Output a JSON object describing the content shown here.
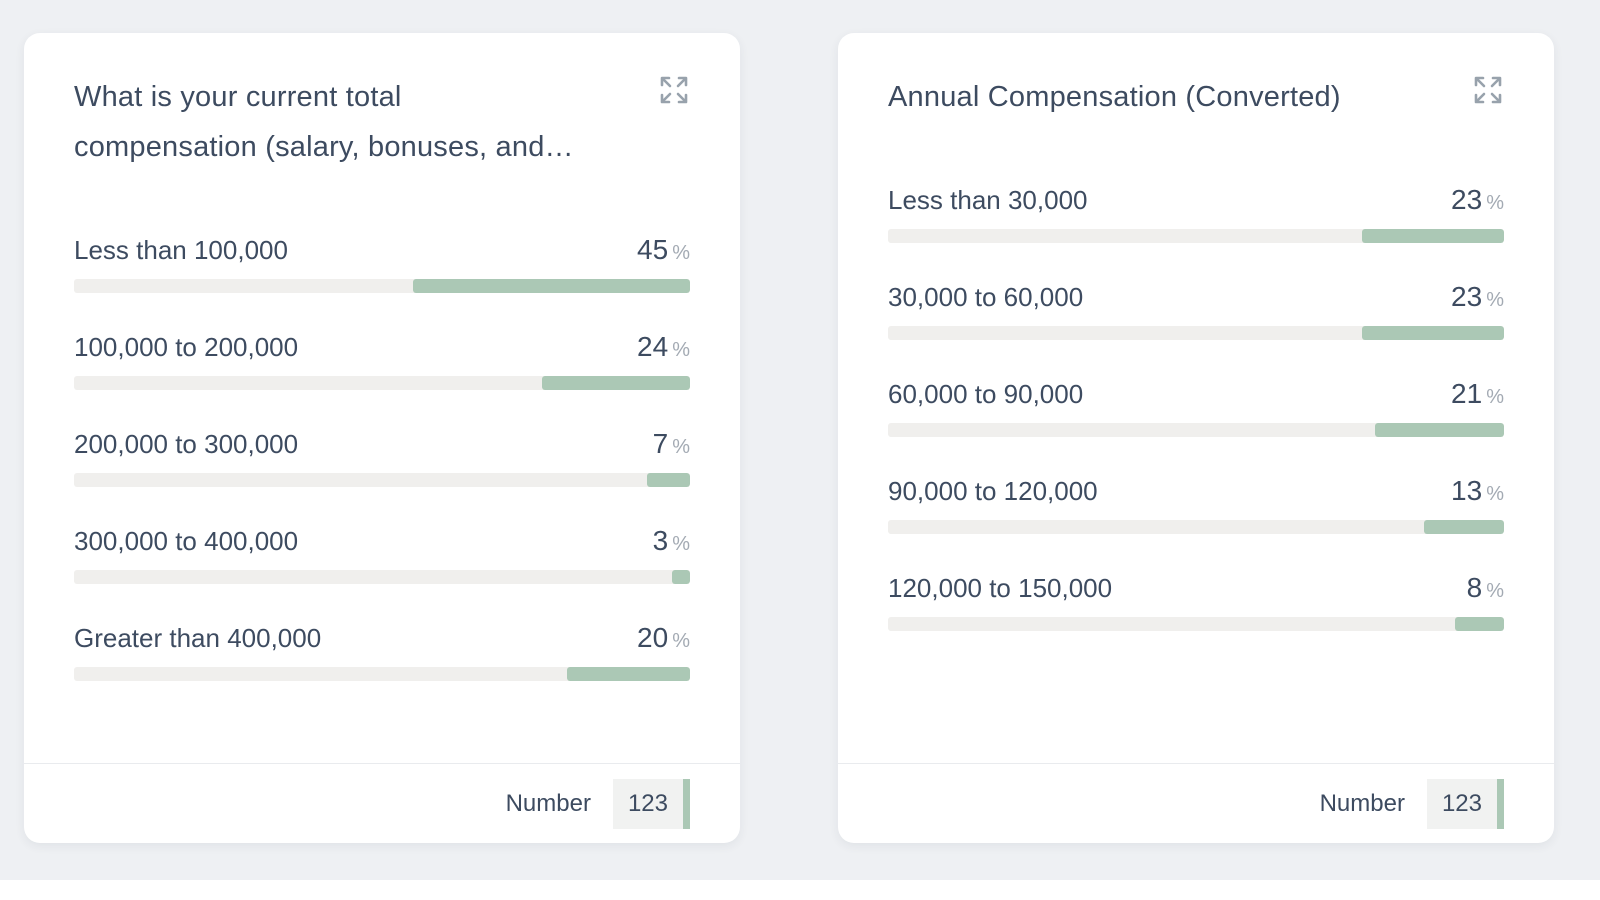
{
  "colors": {
    "page_bg": "#eef0f3",
    "card_bg": "#ffffff",
    "text_dark": "#3d4b60",
    "text_gray": "#a3aab3",
    "bar_track": "#f0efed",
    "bar_fill": "#abc8b5",
    "divider": "#e9ebee",
    "chip_bg": "#f1f2f1",
    "icon_gray": "#98a2ac"
  },
  "cards": [
    {
      "title": "What is your current total compensation (salary, bonuses, and…",
      "title_lines": [
        "What is your current total",
        "compensation (salary, bonuses, and…"
      ],
      "rows": [
        {
          "label": "Less than 100,000",
          "value": 45,
          "unit": "%"
        },
        {
          "label": "100,000 to 200,000",
          "value": 24,
          "unit": "%"
        },
        {
          "label": "200,000 to 300,000",
          "value": 7,
          "unit": "%"
        },
        {
          "label": "300,000 to 400,000",
          "value": 3,
          "unit": "%"
        },
        {
          "label": "Greater than 400,000",
          "value": 20,
          "unit": "%"
        }
      ],
      "footer": {
        "label": "Number",
        "value": "123"
      }
    },
    {
      "title": "Annual Compensation (Converted)",
      "title_lines": [
        "Annual Compensation (Converted)"
      ],
      "rows": [
        {
          "label": "Less than 30,000",
          "value": 23,
          "unit": "%"
        },
        {
          "label": "30,000 to 60,000",
          "value": 23,
          "unit": "%"
        },
        {
          "label": "60,000 to 90,000",
          "value": 21,
          "unit": "%"
        },
        {
          "label": "90,000 to 120,000",
          "value": 13,
          "unit": "%"
        },
        {
          "label": "120,000 to 150,000",
          "value": 8,
          "unit": "%"
        }
      ],
      "footer": {
        "label": "Number",
        "value": "123"
      }
    }
  ],
  "chart_data": [
    {
      "type": "bar",
      "orientation": "horizontal",
      "title": "What is your current total compensation (salary, bonuses, and…",
      "categories": [
        "Less than 100,000",
        "100,000 to 200,000",
        "200,000 to 300,000",
        "300,000 to 400,000",
        "Greater than 400,000"
      ],
      "values": [
        45,
        24,
        7,
        3,
        20
      ],
      "unit": "%",
      "value_range": [
        0,
        100
      ],
      "bar_anchor": "right",
      "footer_label": "Number",
      "footer_value": 123
    },
    {
      "type": "bar",
      "orientation": "horizontal",
      "title": "Annual Compensation (Converted)",
      "categories": [
        "Less than 30,000",
        "30,000 to 60,000",
        "60,000 to 90,000",
        "90,000 to 120,000",
        "120,000 to 150,000"
      ],
      "values": [
        23,
        23,
        21,
        13,
        8
      ],
      "unit": "%",
      "value_range": [
        0,
        100
      ],
      "bar_anchor": "right",
      "footer_label": "Number",
      "footer_value": 123
    }
  ]
}
